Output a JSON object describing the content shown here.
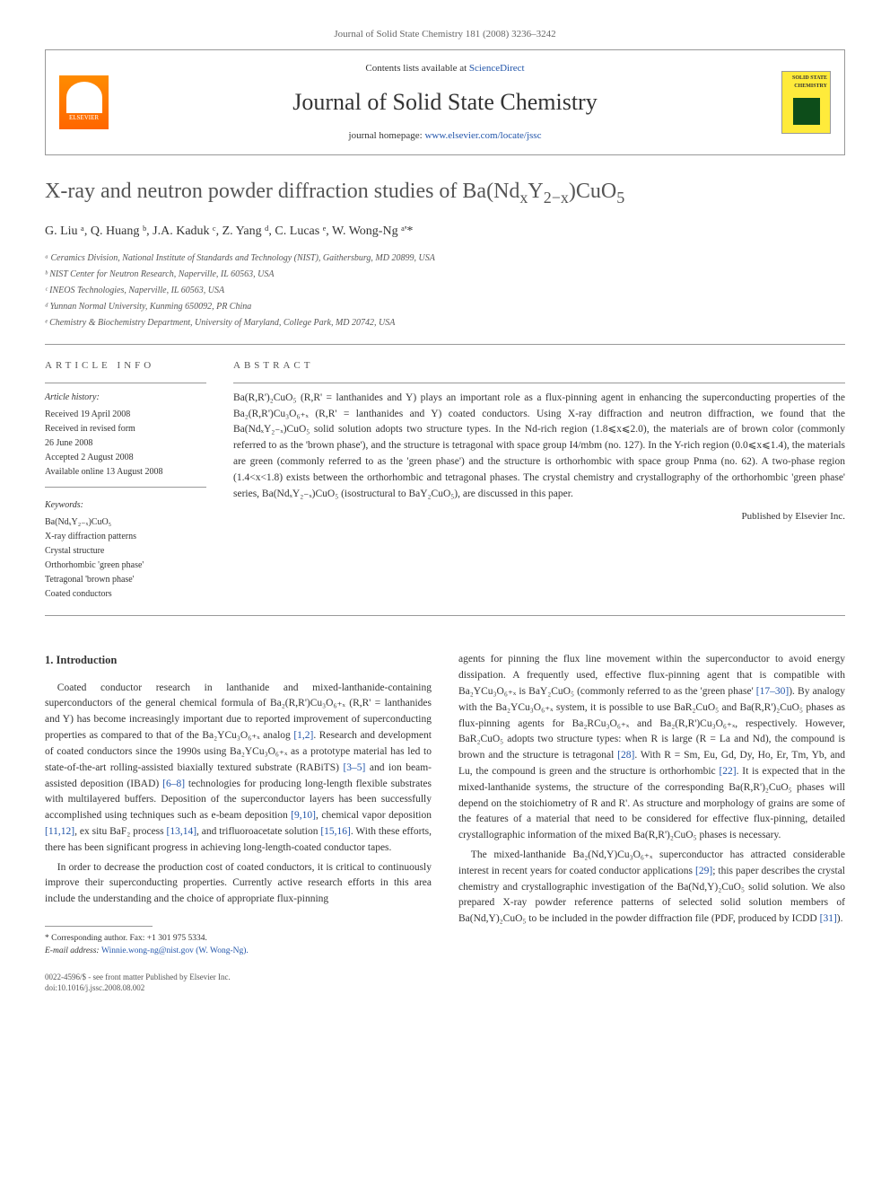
{
  "journal_header": {
    "citation": "Journal of Solid State Chemistry 181 (2008) 3236–3242",
    "contents_prefix": "Contents lists available at ",
    "contents_link": "ScienceDirect",
    "journal_name": "Journal of Solid State Chemistry",
    "homepage_prefix": "journal homepage: ",
    "homepage_link": "www.elsevier.com/locate/jssc",
    "publisher_name": "ELSEVIER",
    "cover_label": "SOLID STATE CHEMISTRY"
  },
  "article": {
    "title_prefix": "X-ray and neutron powder diffraction studies of Ba(Nd",
    "title_sub1": "x",
    "title_mid1": "Y",
    "title_sub2": "2−x",
    "title_mid2": ")CuO",
    "title_sub3": "5",
    "authors": "G. Liu ᵃ, Q. Huang ᵇ, J.A. Kaduk ᶜ, Z. Yang ᵈ, C. Lucas ᵉ, W. Wong-Ng ᵃ'*",
    "affiliations": [
      "ᵃ Ceramics Division, National Institute of Standards and Technology (NIST), Gaithersburg, MD 20899, USA",
      "ᵇ NIST Center for Neutron Research, Naperville, IL 60563, USA",
      "ᶜ INEOS Technologies, Naperville, IL 60563, USA",
      "ᵈ Yunnan Normal University, Kunming 650092, PR China",
      "ᵉ Chemistry & Biochemistry Department, University of Maryland, College Park, MD 20742, USA"
    ]
  },
  "info": {
    "header": "ARTICLE INFO",
    "history_label": "Article history:",
    "history": [
      "Received 19 April 2008",
      "Received in revised form",
      "26 June 2008",
      "Accepted 2 August 2008",
      "Available online 13 August 2008"
    ],
    "keywords_label": "Keywords:",
    "keywords": [
      "Ba(NdₓY₂₋ₓ)CuO₅",
      "X-ray diffraction patterns",
      "Crystal structure",
      "Orthorhombic 'green phase'",
      "Tetragonal 'brown phase'",
      "Coated conductors"
    ]
  },
  "abstract": {
    "header": "ABSTRACT",
    "text": "Ba(R,R')₂CuO₅ (R,R' = lanthanides and Y) plays an important role as a flux-pinning agent in enhancing the superconducting properties of the Ba₂(R,R')Cu₃O₆₊ₓ (R,R' = lanthanides and Y) coated conductors. Using X-ray diffraction and neutron diffraction, we found that the Ba(NdₓY₂₋ₓ)CuO₅ solid solution adopts two structure types. In the Nd-rich region (1.8⩽x⩽2.0), the materials are of brown color (commonly referred to as the 'brown phase'), and the structure is tetragonal with space group I4/mbm (no. 127). In the Y-rich region (0.0⩽x⩽1.4), the materials are green (commonly referred to as the 'green phase') and the structure is orthorhombic with space group Pnma (no. 62). A two-phase region (1.4<x<1.8) exists between the orthorhombic and tetragonal phases. The crystal chemistry and crystallography of the orthorhombic 'green phase' series, Ba(NdₓY₂₋ₓ)CuO₅ (isostructural to BaY₂CuO₅), are discussed in this paper.",
    "published": "Published by Elsevier Inc."
  },
  "intro": {
    "heading": "1. Introduction",
    "p1_a": "Coated conductor research in lanthanide and mixed-lanthanide-containing superconductors of the general chemical formula of Ba₂(R,R')Cu₃O₆₊ₓ (R,R' = lanthanides and Y) has become increasingly important due to reported improvement of superconducting properties as compared to that of the Ba₂YCu₃O₆₊ₓ analog ",
    "ref1": "[1,2]",
    "p1_b": ". Research and development of coated conductors since the 1990s using Ba₂YCu₃O₆₊ₓ as a prototype material has led to state-of-the-art rolling-assisted biaxially textured substrate (RABiTS) ",
    "ref2": "[3–5]",
    "p1_c": " and ion beam-assisted deposition (IBAD) ",
    "ref3": "[6–8]",
    "p1_d": " technologies for producing long-length flexible substrates with multilayered buffers. Deposition of the superconductor layers has been successfully accomplished using techniques such as e-beam deposition ",
    "ref4": "[9,10]",
    "p1_e": ", chemical vapor deposition ",
    "ref5": "[11,12]",
    "p1_f": ", ex situ BaF₂ process ",
    "ref6": "[13,14]",
    "p1_g": ", and trifluoroacetate solution ",
    "ref7": "[15,16]",
    "p1_h": ". With these efforts, there has been significant progress in achieving long-length-coated conductor tapes.",
    "p2": "In order to decrease the production cost of coated conductors, it is critical to continuously improve their superconducting properties. Currently active research efforts in this area include the understanding and the choice of appropriate flux-pinning",
    "p3_a": "agents for pinning the flux line movement within the superconductor to avoid energy dissipation. A frequently used, effective flux-pinning agent that is compatible with Ba₂YCu₃O₆₊ₓ is BaY₂CuO₅ (commonly referred to as the 'green phase' ",
    "ref8": "[17–30]",
    "p3_b": "). By analogy with the Ba₂YCu₃O₆₊ₓ system, it is possible to use BaR₂CuO₅ and Ba(R,R')₂CuO₅ phases as flux-pinning agents for Ba₂RCu₃O₆₊ₓ and Ba₂(R,R')Cu₃O₆₊ₓ, respectively. However, BaR₂CuO₅ adopts two structure types: when R is large (R = La and Nd), the compound is brown and the structure is tetragonal ",
    "ref9": "[28]",
    "p3_c": ". With R = Sm, Eu, Gd, Dy, Ho, Er, Tm, Yb, and Lu, the compound is green and the structure is orthorhombic ",
    "ref10": "[22]",
    "p3_d": ". It is expected that in the mixed-lanthanide systems, the structure of the corresponding Ba(R,R')₂CuO₅ phases will depend on the stoichiometry of R and R'. As structure and morphology of grains are some of the features of a material that need to be considered for effective flux-pinning, detailed crystallographic information of the mixed Ba(R,R')₂CuO₅ phases is necessary.",
    "p4_a": "The mixed-lanthanide Ba₂(Nd,Y)Cu₃O₆₊ₓ superconductor has attracted considerable interest in recent years for coated conductor applications ",
    "ref11": "[29]",
    "p4_b": "; this paper describes the crystal chemistry and crystallographic investigation of the Ba(Nd,Y)₂CuO₅ solid solution. We also prepared X-ray powder reference patterns of selected solid solution members of Ba(Nd,Y)₂CuO₅ to be included in the powder diffraction file (PDF, produced by ICDD ",
    "ref12": "[31]",
    "p4_c": ")."
  },
  "footnotes": {
    "corresponding": "* Corresponding author. Fax: +1 301 975 5334.",
    "email_label": "E-mail address: ",
    "email": "Winnie.wong-ng@nist.gov (W. Wong-Ng)."
  },
  "bottom": {
    "copyright": "0022-4596/$ - see front matter Published by Elsevier Inc.",
    "doi": "doi:10.1016/j.jssc.2008.08.002"
  },
  "colors": {
    "link": "#2255aa",
    "text": "#333333",
    "muted": "#666666",
    "border": "#999999",
    "elsevier_orange": "#ff6600",
    "cover_yellow": "#ffeb3b",
    "cover_green": "#0d4d1a"
  },
  "typography": {
    "body_font": "Georgia, Times New Roman, serif",
    "body_size": 13,
    "title_size": 24,
    "journal_title_size": 26,
    "small_size": 10
  }
}
